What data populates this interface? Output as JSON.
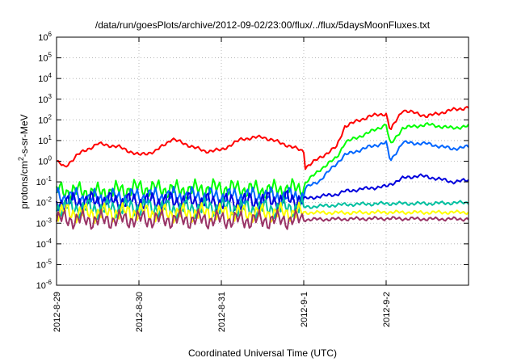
{
  "chart_data": {
    "type": "line",
    "title": "/data/run/goesPlots/archive/2012-09-02/23:00/flux/../flux/5daysMoonFluxes.txt",
    "xlabel": "Coordinated Universal Time (UTC)",
    "ylabel_parts": [
      "protons/cm",
      "2",
      "-s-sr-MeV"
    ],
    "yscale": "log",
    "ylim": [
      1e-06,
      1000000.0
    ],
    "ytick_exponents": [
      -6,
      -5,
      -4,
      -3,
      -2,
      -1,
      0,
      1,
      2,
      3,
      4,
      5,
      6
    ],
    "xlim_days": [
      0,
      5
    ],
    "xticks": [
      {
        "label": "2012-8-29",
        "day": 0
      },
      {
        "label": "2012-8-30",
        "day": 1
      },
      {
        "label": "2012-8-31",
        "day": 2
      },
      {
        "label": "2012-9-1",
        "day": 3
      },
      {
        "label": "2012-9-2",
        "day": 4
      }
    ],
    "grid": true,
    "series": [
      {
        "color": "#ff0000",
        "x": [
          0,
          0.1,
          0.25,
          0.5,
          0.75,
          1.0,
          1.2,
          1.4,
          1.6,
          1.8,
          2.0,
          2.25,
          2.5,
          2.75,
          3.0,
          3.02,
          3.2,
          3.4,
          3.5,
          3.8,
          4.0,
          4.05,
          4.2,
          4.5,
          4.8,
          5.0
        ],
        "y": [
          1.0,
          0.5,
          2.0,
          7.0,
          5.0,
          2.0,
          3.0,
          12.0,
          6.0,
          3.0,
          3.5,
          12.0,
          15.0,
          7.0,
          3.0,
          0.5,
          1.5,
          5.0,
          50.0,
          150.0,
          200.0,
          30.0,
          300.0,
          150.0,
          300.0,
          400.0
        ]
      },
      {
        "color": "#00ff00",
        "x": [
          0,
          0.5,
          1.0,
          1.5,
          2.0,
          2.5,
          3.0,
          3.02,
          3.2,
          3.4,
          3.5,
          3.8,
          4.0,
          4.05,
          4.2,
          4.5,
          4.8,
          5.0
        ],
        "y": [
          0.04,
          0.03,
          0.05,
          0.04,
          0.05,
          0.04,
          0.05,
          0.09,
          0.4,
          1.5,
          8.0,
          25.0,
          60.0,
          6.0,
          40.0,
          60.0,
          40.0,
          50.0
        ]
      },
      {
        "color": "#0066ff",
        "x": [
          0,
          0.5,
          1.0,
          1.5,
          2.0,
          2.5,
          3.0,
          3.02,
          3.2,
          3.35,
          3.5,
          3.8,
          4.0,
          4.05,
          4.2,
          4.5,
          4.8,
          5.0
        ],
        "y": [
          0.02,
          0.015,
          0.02,
          0.02,
          0.02,
          0.02,
          0.02,
          0.05,
          0.12,
          0.5,
          2.0,
          5.0,
          8.0,
          1.0,
          8.0,
          7.0,
          4.0,
          5.0
        ]
      },
      {
        "color": "#0000dd",
        "x": [
          0,
          0.5,
          1.0,
          1.5,
          2.0,
          2.5,
          3.0,
          3.2,
          3.4,
          3.5,
          3.8,
          4.0,
          4.2,
          4.4,
          4.6,
          4.8,
          5.0
        ],
        "y": [
          0.01,
          0.012,
          0.011,
          0.012,
          0.01,
          0.012,
          0.015,
          0.02,
          0.025,
          0.035,
          0.05,
          0.06,
          0.15,
          0.2,
          0.15,
          0.1,
          0.12
        ]
      },
      {
        "color": "#00c0a0",
        "x": [
          0,
          0.5,
          1.0,
          1.5,
          2.0,
          2.5,
          3.0,
          3.5,
          4.0,
          4.5,
          5.0
        ],
        "y": [
          0.006,
          0.005,
          0.006,
          0.005,
          0.006,
          0.005,
          0.006,
          0.008,
          0.009,
          0.009,
          0.01
        ]
      },
      {
        "color": "#ffff00",
        "x": [
          0,
          0.5,
          1.0,
          1.5,
          2.0,
          2.5,
          3.0,
          3.5,
          4.0,
          4.5,
          5.0
        ],
        "y": [
          0.0035,
          0.003,
          0.0035,
          0.003,
          0.0032,
          0.003,
          0.0033,
          0.0032,
          0.0034,
          0.0033,
          0.0034
        ]
      },
      {
        "color": "#993366",
        "x": [
          0,
          0.5,
          1.0,
          1.5,
          2.0,
          2.5,
          3.0,
          3.5,
          4.0,
          4.5,
          5.0
        ],
        "y": [
          0.0016,
          0.0014,
          0.0016,
          0.0015,
          0.0015,
          0.0014,
          0.0015,
          0.0016,
          0.0017,
          0.0016,
          0.0016
        ]
      }
    ]
  }
}
